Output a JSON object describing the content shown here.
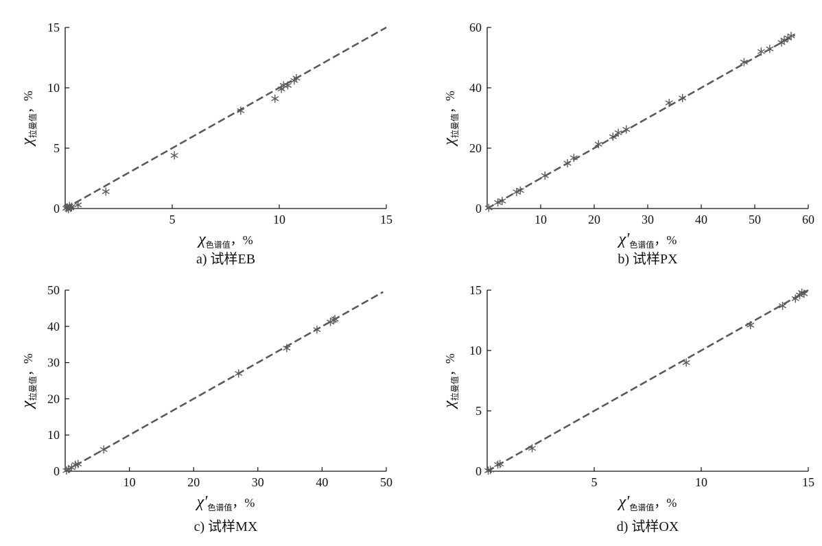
{
  "chart_data": [
    {
      "type": "scatter",
      "caption": "a) 试样EB",
      "xlabel": {
        "symbol": "χ",
        "subscript": "色谱值",
        "unit": "，%"
      },
      "ylabel": {
        "symbol": "χ",
        "subscript": "拉曼值",
        "unit": "，%"
      },
      "xlim": [
        0,
        15
      ],
      "ylim": [
        0,
        15
      ],
      "xticks": [
        "5",
        "10",
        "15"
      ],
      "yticks": [
        "0",
        "5",
        "10",
        "15"
      ],
      "origin_label": "0",
      "fit_line": {
        "style": "dashed",
        "from": [
          0,
          0
        ],
        "to": [
          15,
          15
        ]
      },
      "points": [
        [
          0.05,
          0.02
        ],
        [
          0.1,
          0.1
        ],
        [
          0.15,
          -0.05
        ],
        [
          0.2,
          0.2
        ],
        [
          0.25,
          0.05
        ],
        [
          0.3,
          0.15
        ],
        [
          0.6,
          0.3
        ],
        [
          1.9,
          1.4
        ],
        [
          5.1,
          4.4
        ],
        [
          8.2,
          8.1
        ],
        [
          9.8,
          9.1
        ],
        [
          10.1,
          9.9
        ],
        [
          10.2,
          10.2
        ],
        [
          10.4,
          10.2
        ],
        [
          10.7,
          10.6
        ],
        [
          10.8,
          10.8
        ]
      ]
    },
    {
      "type": "scatter",
      "caption": "b) 试样PX",
      "xlabel": {
        "symbol": "χ′",
        "subscript": "色谱值",
        "unit": "，%"
      },
      "ylabel": {
        "symbol": "χ",
        "subscript": "拉曼值",
        "unit": "，%"
      },
      "xlim": [
        0,
        60
      ],
      "ylim": [
        0,
        60
      ],
      "xticks": [
        "10",
        "20",
        "30",
        "40",
        "50",
        "60"
      ],
      "yticks": [
        "0",
        "20",
        "40",
        "60"
      ],
      "origin_label": "0",
      "fit_line": {
        "style": "dashed",
        "from": [
          0,
          0
        ],
        "to": [
          57.5,
          57.5
        ]
      },
      "points": [
        [
          0.3,
          0.2
        ],
        [
          2.0,
          2.0
        ],
        [
          2.8,
          2.5
        ],
        [
          5.5,
          5.5
        ],
        [
          6.2,
          6.0
        ],
        [
          10.8,
          10.9
        ],
        [
          15.0,
          15.0
        ],
        [
          16.2,
          16.8
        ],
        [
          20.8,
          21.3
        ],
        [
          23.5,
          23.8
        ],
        [
          24.5,
          25.1
        ],
        [
          26.0,
          26.2
        ],
        [
          34.0,
          35.0
        ],
        [
          36.5,
          36.6
        ],
        [
          48.0,
          48.5
        ],
        [
          51.2,
          52.0
        ],
        [
          52.8,
          52.9
        ],
        [
          55.0,
          55.0
        ],
        [
          55.5,
          55.8
        ],
        [
          56.2,
          56.5
        ],
        [
          56.8,
          57.2
        ]
      ]
    },
    {
      "type": "scatter",
      "caption": "c) 试样MX",
      "xlabel": {
        "symbol": "χ′",
        "subscript": "色谱值",
        "unit": "，%"
      },
      "ylabel": {
        "symbol": "χ",
        "subscript": "拉曼值",
        "unit": "，%"
      },
      "xlim": [
        0,
        50
      ],
      "ylim": [
        0,
        50
      ],
      "xticks": [
        "10",
        "20",
        "30",
        "40",
        "50"
      ],
      "yticks": [
        "0",
        "10",
        "20",
        "30",
        "40",
        "50"
      ],
      "origin_label": "0",
      "fit_line": {
        "style": "dashed",
        "from": [
          0,
          0
        ],
        "to": [
          49.5,
          49.5
        ]
      },
      "points": [
        [
          0.2,
          0.2
        ],
        [
          0.5,
          0.6
        ],
        [
          1.0,
          1.0
        ],
        [
          1.6,
          1.8
        ],
        [
          2.0,
          2.0
        ],
        [
          6.0,
          6.0
        ],
        [
          27.0,
          27.0
        ],
        [
          34.5,
          34.0
        ],
        [
          39.2,
          39.1
        ],
        [
          41.3,
          41.2
        ],
        [
          41.8,
          41.7
        ],
        [
          42.0,
          42.0
        ]
      ]
    },
    {
      "type": "scatter",
      "caption": "d) 试样OX",
      "xlabel": {
        "symbol": "χ′",
        "subscript": "色谱值",
        "unit": "，%"
      },
      "ylabel": {
        "symbol": "χ",
        "subscript": "拉曼值",
        "unit": "，%"
      },
      "xlim": [
        0,
        15
      ],
      "ylim": [
        0,
        15
      ],
      "xticks": [
        "5",
        "10",
        "15"
      ],
      "yticks": [
        "0",
        "5",
        "10",
        "15"
      ],
      "origin_label": "0",
      "fit_line": {
        "style": "dashed",
        "from": [
          0,
          0
        ],
        "to": [
          15,
          15
        ]
      },
      "points": [
        [
          0.05,
          0.05
        ],
        [
          0.15,
          0.1
        ],
        [
          0.5,
          0.55
        ],
        [
          0.6,
          0.6
        ],
        [
          2.1,
          1.9
        ],
        [
          9.3,
          9.0
        ],
        [
          12.3,
          12.1
        ],
        [
          13.8,
          13.7
        ],
        [
          14.4,
          14.3
        ],
        [
          14.6,
          14.6
        ],
        [
          14.7,
          14.8
        ],
        [
          14.8,
          14.7
        ]
      ]
    }
  ],
  "colors": {
    "line": "#5a5a5a",
    "marker": "#5a5a5a",
    "axis": "#111111"
  }
}
